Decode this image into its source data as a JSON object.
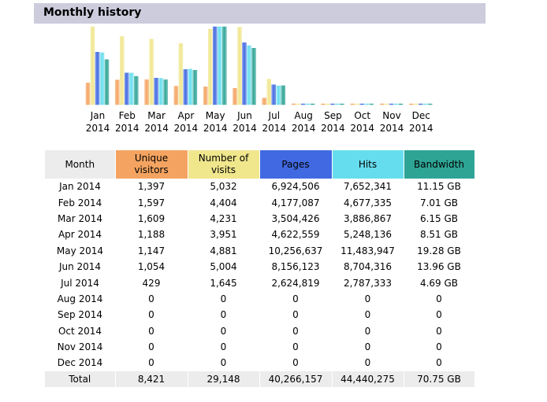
{
  "header": {
    "title": "Monthly history"
  },
  "colors": {
    "unique_visitors": "#f4a460",
    "visits": "#f0e68c",
    "pages": "#4169e1",
    "hits": "#66ddee",
    "bandwidth": "#2ea495"
  },
  "chart_data": {
    "type": "bar",
    "categories": [
      [
        "Jan",
        "2014"
      ],
      [
        "Feb",
        "2014"
      ],
      [
        "Mar",
        "2014"
      ],
      [
        "Apr",
        "2014"
      ],
      [
        "May",
        "2014"
      ],
      [
        "Jun",
        "2014"
      ],
      [
        "Jul",
        "2014"
      ],
      [
        "Aug",
        "2014"
      ],
      [
        "Sep",
        "2014"
      ],
      [
        "Oct",
        "2014"
      ],
      [
        "Nov",
        "2014"
      ],
      [
        "Dec",
        "2014"
      ]
    ],
    "series": [
      {
        "key": "unique_visitors",
        "values": [
          1397,
          1597,
          1609,
          1188,
          1147,
          1054,
          429,
          0,
          0,
          0,
          0,
          0
        ]
      },
      {
        "key": "visits",
        "values": [
          5032,
          4404,
          4231,
          3951,
          4881,
          5004,
          1645,
          0,
          0,
          0,
          0,
          0
        ]
      },
      {
        "key": "pages",
        "values": [
          6924506,
          4177087,
          3504426,
          4622559,
          10256637,
          8156123,
          2624819,
          0,
          0,
          0,
          0,
          0
        ]
      },
      {
        "key": "hits",
        "values": [
          7652341,
          4677335,
          3886867,
          5248136,
          11483947,
          8704316,
          2787333,
          0,
          0,
          0,
          0,
          0
        ]
      },
      {
        "key": "bandwidth",
        "values": [
          11.15,
          7.01,
          6.15,
          8.51,
          19.28,
          13.96,
          4.69,
          0,
          0,
          0,
          0,
          0
        ]
      }
    ],
    "grouping": "visitors and visits share a scale; pages, hits and bandwidth each scaled to their own maximum",
    "legend": "none",
    "grid": false
  },
  "table": {
    "headers": [
      "Month",
      "Unique visitors",
      "Number of visits",
      "Pages",
      "Hits",
      "Bandwidth"
    ],
    "rows": [
      [
        "Jan 2014",
        "1,397",
        "5,032",
        "6,924,506",
        "7,652,341",
        "11.15 GB"
      ],
      [
        "Feb 2014",
        "1,597",
        "4,404",
        "4,177,087",
        "4,677,335",
        "7.01 GB"
      ],
      [
        "Mar 2014",
        "1,609",
        "4,231",
        "3,504,426",
        "3,886,867",
        "6.15 GB"
      ],
      [
        "Apr 2014",
        "1,188",
        "3,951",
        "4,622,559",
        "5,248,136",
        "8.51 GB"
      ],
      [
        "May 2014",
        "1,147",
        "4,881",
        "10,256,637",
        "11,483,947",
        "19.28 GB"
      ],
      [
        "Jun 2014",
        "1,054",
        "5,004",
        "8,156,123",
        "8,704,316",
        "13.96 GB"
      ],
      [
        "Jul 2014",
        "429",
        "1,645",
        "2,624,819",
        "2,787,333",
        "4.69 GB"
      ],
      [
        "Aug 2014",
        "0",
        "0",
        "0",
        "0",
        "0"
      ],
      [
        "Sep 2014",
        "0",
        "0",
        "0",
        "0",
        "0"
      ],
      [
        "Oct 2014",
        "0",
        "0",
        "0",
        "0",
        "0"
      ],
      [
        "Nov 2014",
        "0",
        "0",
        "0",
        "0",
        "0"
      ],
      [
        "Dec 2014",
        "0",
        "0",
        "0",
        "0",
        "0"
      ]
    ],
    "total": {
      "label": "Total",
      "unique_visitors": "8,421",
      "visits": "29,148",
      "pages": "40,266,157",
      "hits": "44,440,275",
      "bandwidth": "70.75 GB"
    }
  }
}
